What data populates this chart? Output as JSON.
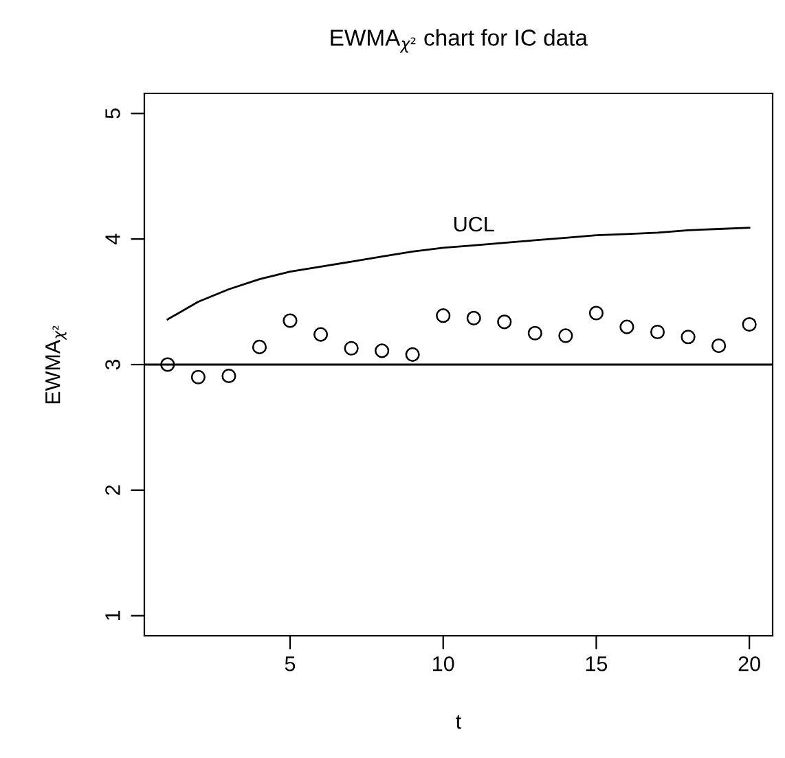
{
  "chart_data": {
    "type": "scatter",
    "title": "EWMA$_{χ²}$ chart for IC data",
    "xlabel": "t",
    "ylabel": "EWMA$_{χ²}$",
    "x": [
      1,
      2,
      3,
      4,
      5,
      6,
      7,
      8,
      9,
      10,
      11,
      12,
      13,
      14,
      15,
      16,
      17,
      18,
      19,
      20
    ],
    "series": [
      {
        "color": "#000000",
        "marker": "circle",
        "values": [
          3.0,
          2.9,
          2.91,
          3.14,
          3.35,
          3.24,
          3.13,
          3.11,
          3.08,
          3.39,
          3.37,
          3.34,
          3.25,
          3.23,
          3.41,
          3.3,
          3.26,
          3.22,
          3.15,
          3.32
        ]
      },
      {
        "type": "line",
        "color": "#000000",
        "marker": "none",
        "line_style": "solid",
        "values": [
          3.36,
          3.5,
          3.6,
          3.68,
          3.74,
          3.78,
          3.82,
          3.86,
          3.9,
          3.93,
          3.95,
          3.97,
          3.99,
          4.01,
          4.03,
          4.04,
          4.05,
          4.07,
          4.08,
          4.09
        ]
      }
    ],
    "ref_lines": [
      {
        "axis": "y",
        "value": 3,
        "color": "#000000",
        "line_style": "solid"
      }
    ],
    "annotations": [
      "UCL"
    ],
    "xlim": [
      0.24,
      20.76
    ],
    "ylim": [
      0.84,
      5.16
    ],
    "xticks": [
      5,
      10,
      15,
      20
    ],
    "yticks": [
      1,
      2,
      3,
      4,
      5
    ],
    "grid": false,
    "legend": false
  }
}
